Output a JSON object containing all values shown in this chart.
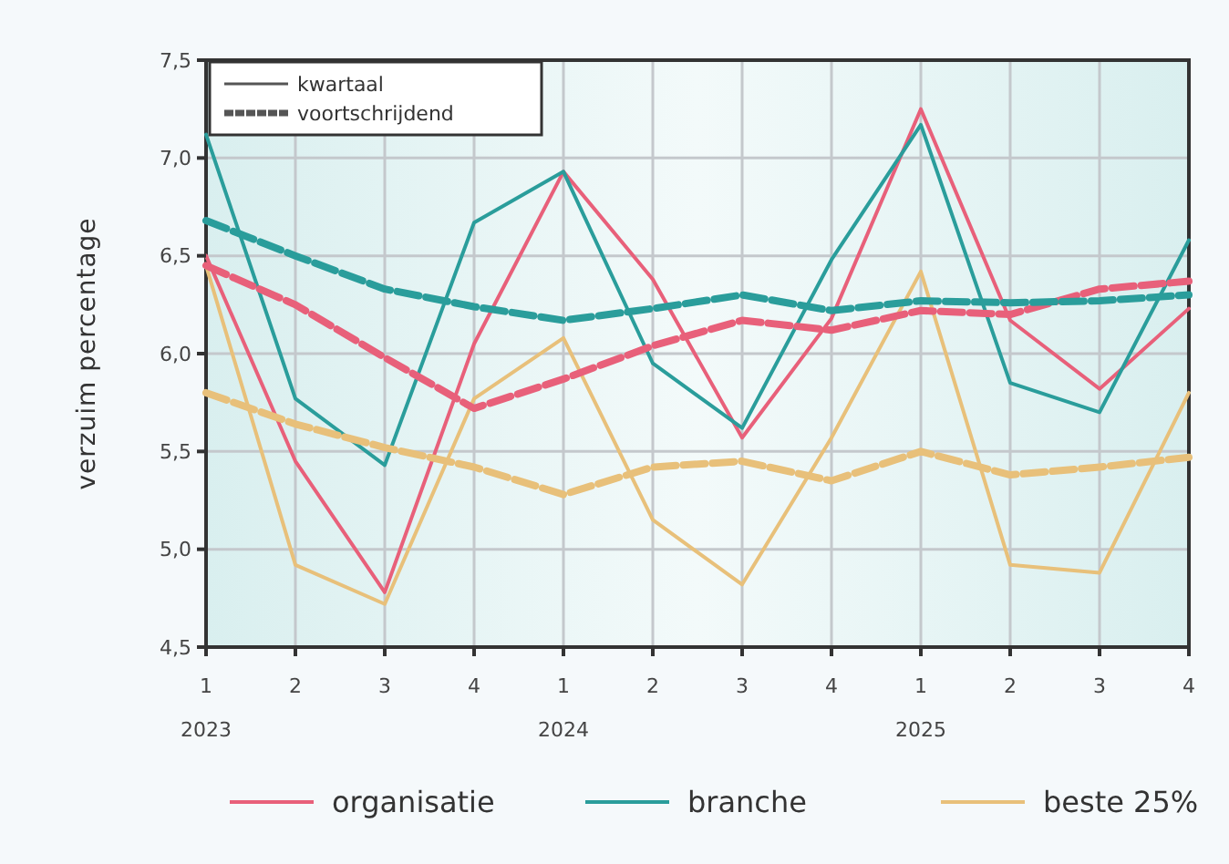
{
  "chart_data": {
    "type": "line",
    "ylabel": "verzuim percentage",
    "categories": [
      "1\n2023",
      "2",
      "3",
      "4",
      "1\n2024",
      "2",
      "3",
      "4",
      "1\n2025",
      "2",
      "3",
      "4"
    ],
    "ylim": [
      4.5,
      7.5
    ],
    "yticks": [
      {
        "value": 4.5,
        "label": "4,5"
      },
      {
        "value": 5,
        "label": "5,0"
      },
      {
        "value": 5.5,
        "label": "5,5"
      },
      {
        "value": 6,
        "label": "6,0"
      },
      {
        "value": 6.5,
        "label": "6,5"
      },
      {
        "value": 7,
        "label": "7,0"
      },
      {
        "value": 7.5,
        "label": "7,5"
      }
    ],
    "grid": true,
    "legend": "bottom",
    "marker": "none",
    "annotations": [
      "kwartaal",
      "voortschrijdend"
    ],
    "series": [
      {
        "name": "organisatie",
        "color": "#e8607a",
        "line_style": "solid",
        "values": [
          6.5,
          5.45,
          4.78,
          6.05,
          6.93,
          6.38,
          5.57,
          6.18,
          7.25,
          6.17,
          5.82,
          6.23
        ]
      },
      {
        "name": "branche",
        "color": "#2a9d9b",
        "line_style": "solid",
        "values": [
          7.12,
          5.77,
          5.43,
          6.67,
          6.93,
          5.95,
          5.62,
          6.48,
          7.17,
          5.85,
          5.7,
          6.58
        ]
      },
      {
        "name": "beste 25%",
        "color": "#e8c07a",
        "line_style": "solid",
        "values": [
          6.45,
          4.92,
          4.72,
          5.77,
          6.08,
          5.15,
          4.82,
          5.57,
          6.42,
          4.92,
          4.88,
          5.8
        ]
      },
      {
        "color": "#e8607a",
        "line_style": "dashed",
        "values": [
          6.45,
          6.25,
          5.98,
          5.72,
          5.87,
          6.04,
          6.17,
          6.12,
          6.22,
          6.2,
          6.33,
          6.37
        ]
      },
      {
        "color": "#2a9d9b",
        "line_style": "dashed",
        "values": [
          6.68,
          6.5,
          6.33,
          6.24,
          6.17,
          6.23,
          6.3,
          6.22,
          6.27,
          6.26,
          6.27,
          6.3
        ]
      },
      {
        "color": "#e8c07a",
        "line_style": "dashed",
        "values": [
          5.8,
          5.64,
          5.52,
          5.42,
          5.28,
          5.42,
          5.45,
          5.35,
          5.5,
          5.38,
          5.42,
          5.47
        ]
      }
    ]
  }
}
